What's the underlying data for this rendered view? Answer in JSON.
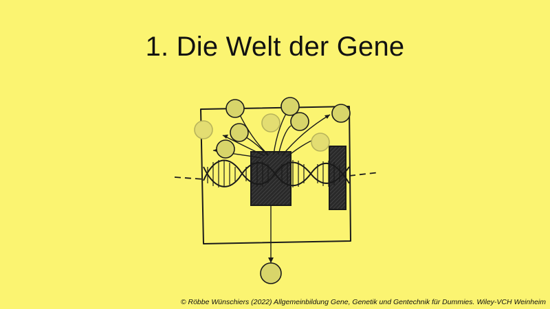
{
  "slide": {
    "title": "1. Die Welt der Gene",
    "copyright": "© Röbbe Wünschiers (2022) Allgemeinbildung Gene, Genetik und Gentechnik für Dummies. Wiley-VCH Weinheim"
  },
  "colors": {
    "background": "#fbf471",
    "ink": "#1a1a1a",
    "protein_fill": "#d8d56a",
    "gene_block": "#222222"
  },
  "illustration": {
    "subject": "cell with DNA double helix, gene blocks and protein molecules"
  }
}
